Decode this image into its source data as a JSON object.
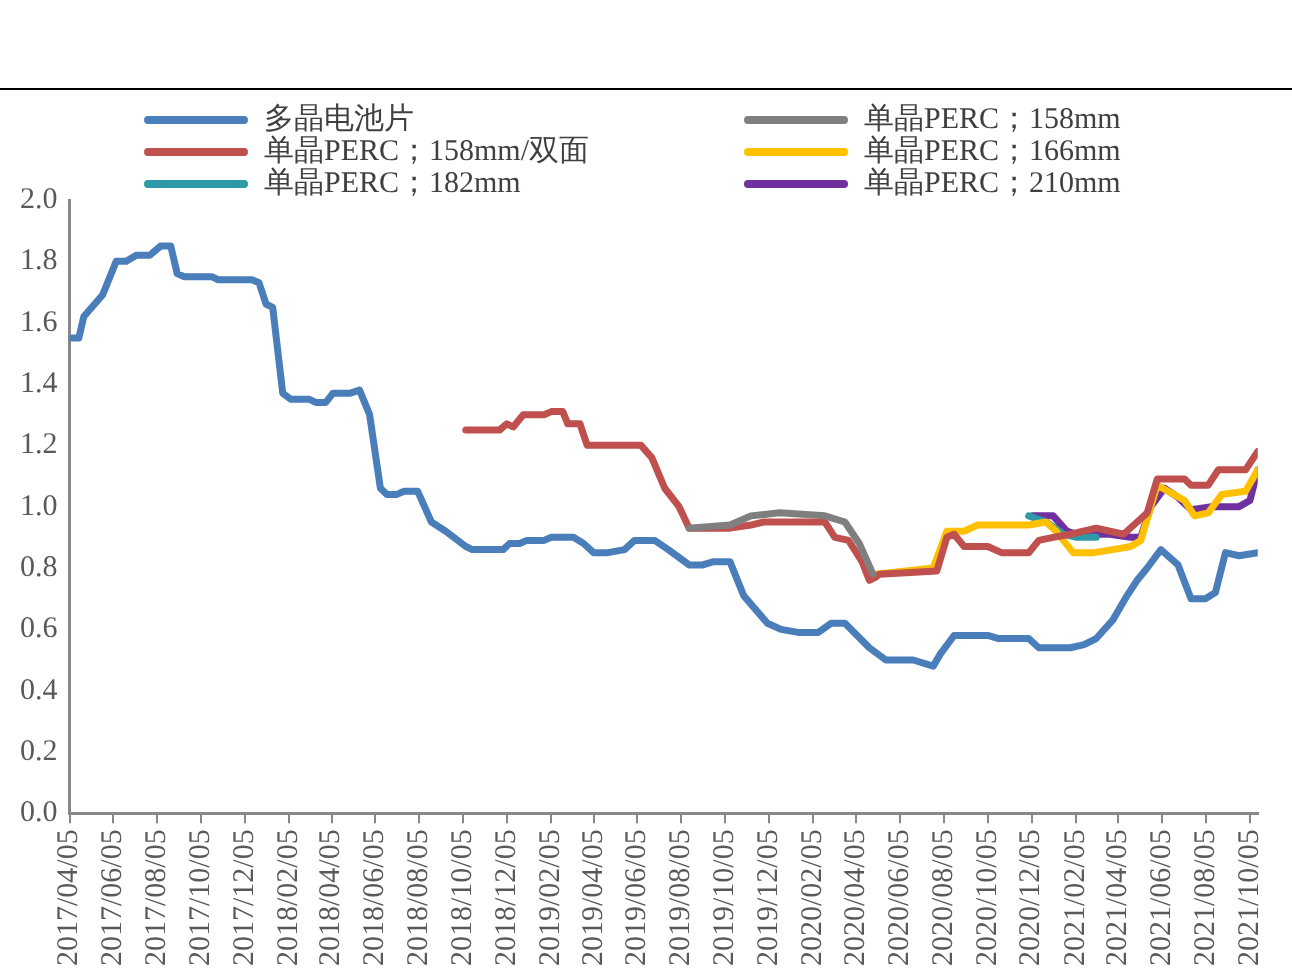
{
  "chart_data": {
    "type": "line",
    "legend": "top",
    "marker": "none",
    "line_style": "solid",
    "grid": false,
    "xlim": [
      "2017-04-05",
      "2021-10-16"
    ],
    "xticks": [
      {
        "value": "2017-04-05",
        "label": "2017/04/05"
      },
      {
        "value": "2017-06-05",
        "label": "2017/06/05"
      },
      {
        "value": "2017-08-05",
        "label": "2017/08/05"
      },
      {
        "value": "2017-10-05",
        "label": "2017/10/05"
      },
      {
        "value": "2017-12-05",
        "label": "2017/12/05"
      },
      {
        "value": "2018-02-05",
        "label": "2018/02/05"
      },
      {
        "value": "2018-04-05",
        "label": "2018/04/05"
      },
      {
        "value": "2018-06-05",
        "label": "2018/06/05"
      },
      {
        "value": "2018-08-05",
        "label": "2018/08/05"
      },
      {
        "value": "2018-10-05",
        "label": "2018/10/05"
      },
      {
        "value": "2018-12-05",
        "label": "2018/12/05"
      },
      {
        "value": "2019-02-05",
        "label": "2019/02/05"
      },
      {
        "value": "2019-04-05",
        "label": "2019/04/05"
      },
      {
        "value": "2019-06-05",
        "label": "2019/06/05"
      },
      {
        "value": "2019-08-05",
        "label": "2019/08/05"
      },
      {
        "value": "2019-10-05",
        "label": "2019/10/05"
      },
      {
        "value": "2019-12-05",
        "label": "2019/12/05"
      },
      {
        "value": "2020-02-05",
        "label": "2020/02/05"
      },
      {
        "value": "2020-04-05",
        "label": "2020/04/05"
      },
      {
        "value": "2020-06-05",
        "label": "2020/06/05"
      },
      {
        "value": "2020-08-05",
        "label": "2020/08/05"
      },
      {
        "value": "2020-10-05",
        "label": "2020/10/05"
      },
      {
        "value": "2020-12-05",
        "label": "2020/12/05"
      },
      {
        "value": "2021-02-05",
        "label": "2021/02/05"
      },
      {
        "value": "2021-04-05",
        "label": "2021/04/05"
      },
      {
        "value": "2021-06-05",
        "label": "2021/06/05"
      },
      {
        "value": "2021-08-05",
        "label": "2021/08/05"
      },
      {
        "value": "2021-10-05",
        "label": "2021/10/05"
      }
    ],
    "ylim": [
      0,
      2
    ],
    "yticks": [
      {
        "value": 0,
        "label": "0.0"
      },
      {
        "value": 0.2,
        "label": "0.2"
      },
      {
        "value": 0.4,
        "label": "0.4"
      },
      {
        "value": 0.6,
        "label": "0.6"
      },
      {
        "value": 0.8,
        "label": "0.8"
      },
      {
        "value": 1,
        "label": "1.0"
      },
      {
        "value": 1.2,
        "label": "1.2"
      },
      {
        "value": 1.4,
        "label": "1.4"
      },
      {
        "value": 1.6,
        "label": "1.6"
      },
      {
        "value": 1.8,
        "label": "1.8"
      },
      {
        "value": 2,
        "label": "2.0"
      }
    ],
    "series": [
      {
        "name": "多晶电池片",
        "color": "#4a7ebb",
        "x": [
          "2017-04-05",
          "2017-04-18",
          "2017-04-25",
          "2017-05-21",
          "2017-06-09",
          "2017-06-23",
          "2017-07-07",
          "2017-07-26",
          "2017-08-10",
          "2017-08-24",
          "2017-09-02",
          "2017-09-12",
          "2017-10-20",
          "2017-10-29",
          "2017-12-15",
          "2017-12-25",
          "2018-01-04",
          "2018-01-13",
          "2018-01-27",
          "2018-02-07",
          "2018-03-05",
          "2018-03-14",
          "2018-03-28",
          "2018-04-07",
          "2018-05-01",
          "2018-05-14",
          "2018-05-28",
          "2018-06-12",
          "2018-06-21",
          "2018-07-05",
          "2018-07-15",
          "2018-08-03",
          "2018-08-22",
          "2018-09-11",
          "2018-10-09",
          "2018-10-18",
          "2018-11-30",
          "2018-12-09",
          "2018-12-23",
          "2019-01-02",
          "2019-01-26",
          "2019-02-05",
          "2019-03-08",
          "2019-03-22",
          "2019-04-05",
          "2019-04-25",
          "2019-05-18",
          "2019-06-01",
          "2019-06-29",
          "2019-07-18",
          "2019-08-16",
          "2019-09-04",
          "2019-09-18",
          "2019-10-12",
          "2019-10-31",
          "2019-12-03",
          "2019-12-22",
          "2020-01-15",
          "2020-02-12",
          "2020-03-01",
          "2020-03-20",
          "2020-04-23",
          "2020-05-16",
          "2020-06-23",
          "2020-07-21",
          "2020-07-31",
          "2020-08-19",
          "2020-10-05",
          "2020-10-20",
          "2020-12-01",
          "2020-12-15",
          "2021-01-28",
          "2021-02-16",
          "2021-03-05",
          "2021-03-28",
          "2021-04-17",
          "2021-05-01",
          "2021-05-15",
          "2021-06-03",
          "2021-06-27",
          "2021-07-15",
          "2021-08-04",
          "2021-08-18",
          "2021-09-01",
          "2021-09-20",
          "2021-10-16"
        ],
        "values": [
          1.55,
          1.55,
          1.62,
          1.69,
          1.8,
          1.8,
          1.82,
          1.82,
          1.85,
          1.85,
          1.76,
          1.75,
          1.75,
          1.74,
          1.74,
          1.73,
          1.66,
          1.65,
          1.37,
          1.35,
          1.35,
          1.34,
          1.34,
          1.37,
          1.37,
          1.38,
          1.3,
          1.06,
          1.04,
          1.04,
          1.05,
          1.05,
          0.95,
          0.92,
          0.87,
          0.86,
          0.86,
          0.88,
          0.88,
          0.89,
          0.89,
          0.9,
          0.9,
          0.88,
          0.85,
          0.85,
          0.86,
          0.89,
          0.89,
          0.86,
          0.81,
          0.81,
          0.82,
          0.82,
          0.71,
          0.62,
          0.6,
          0.59,
          0.59,
          0.62,
          0.62,
          0.54,
          0.5,
          0.5,
          0.48,
          0.52,
          0.58,
          0.58,
          0.57,
          0.57,
          0.54,
          0.54,
          0.55,
          0.57,
          0.63,
          0.71,
          0.76,
          0.8,
          0.86,
          0.81,
          0.7,
          0.7,
          0.72,
          0.85,
          0.84,
          0.85
        ]
      },
      {
        "name": "单晶PERC；158mm",
        "color": "#7f7f7f",
        "x": [
          "2019-08-16",
          "2019-10-12",
          "2019-11-10",
          "2019-12-20",
          "2020-02-21",
          "2020-03-20",
          "2020-04-09",
          "2020-04-28"
        ],
        "values": [
          0.93,
          0.94,
          0.97,
          0.98,
          0.97,
          0.95,
          0.88,
          0.78
        ]
      },
      {
        "name": "单晶PERC；158mm/双面",
        "color": "#c0504d",
        "x": [
          "2018-10-09",
          "2018-11-25",
          "2018-12-05",
          "2018-12-14",
          "2018-12-28",
          "2019-01-26",
          "2019-02-05",
          "2019-02-21",
          "2019-02-28",
          "2019-03-17",
          "2019-03-27",
          "2019-06-10",
          "2019-06-25",
          "2019-07-13",
          "2019-08-02",
          "2019-08-16",
          "2019-10-12",
          "2019-11-10",
          "2019-11-28",
          "2020-02-21",
          "2020-03-06",
          "2020-03-25",
          "2020-04-13",
          "2020-04-23",
          "2020-05-02",
          "2020-05-07",
          "2020-07-26",
          "2020-08-09",
          "2020-08-19",
          "2020-09-02",
          "2020-10-05",
          "2020-10-24",
          "2020-12-01",
          "2020-12-15",
          "2021-01-04",
          "2021-01-28",
          "2021-03-05",
          "2021-04-12",
          "2021-05-01",
          "2021-05-15",
          "2021-05-29",
          "2021-07-06",
          "2021-07-15",
          "2021-08-08",
          "2021-08-22",
          "2021-09-29",
          "2021-10-16"
        ],
        "values": [
          1.25,
          1.25,
          1.27,
          1.26,
          1.3,
          1.3,
          1.31,
          1.31,
          1.27,
          1.27,
          1.2,
          1.2,
          1.16,
          1.06,
          1,
          0.93,
          0.93,
          0.94,
          0.95,
          0.95,
          0.9,
          0.89,
          0.82,
          0.76,
          0.77,
          0.78,
          0.79,
          0.9,
          0.91,
          0.87,
          0.87,
          0.85,
          0.85,
          0.89,
          0.9,
          0.91,
          0.93,
          0.91,
          0.95,
          0.98,
          1.09,
          1.09,
          1.07,
          1.07,
          1.12,
          1.12,
          1.18
        ]
      },
      {
        "name": "单晶PERC；166mm",
        "color": "#ffc000",
        "x": [
          "2020-05-02",
          "2020-07-21",
          "2020-08-09",
          "2020-09-02",
          "2020-09-21",
          "2020-12-01",
          "2020-12-25",
          "2021-01-08",
          "2021-02-01",
          "2021-03-02",
          "2021-03-28",
          "2021-04-22",
          "2021-05-06",
          "2021-05-29",
          "2021-07-06",
          "2021-07-20",
          "2021-08-08",
          "2021-08-27",
          "2021-09-29",
          "2021-10-16"
        ],
        "values": [
          0.78,
          0.8,
          0.92,
          0.92,
          0.94,
          0.94,
          0.95,
          0.92,
          0.85,
          0.85,
          0.86,
          0.87,
          0.89,
          1.07,
          1.02,
          0.97,
          0.98,
          1.04,
          1.05,
          1.12
        ]
      },
      {
        "name": "单晶PERC；182mm",
        "color": "#2e9aa8",
        "x": [
          "2020-12-01",
          "2020-12-25",
          "2021-01-19",
          "2021-02-06",
          "2021-03-05"
        ],
        "values": [
          0.97,
          0.95,
          0.91,
          0.9,
          0.9
        ]
      },
      {
        "name": "单晶PERC；210mm",
        "color": "#7030a0",
        "x": [
          "2020-12-06",
          "2021-01-04",
          "2021-01-23",
          "2021-02-06",
          "2021-03-24",
          "2021-04-22",
          "2021-05-06",
          "2021-05-20",
          "2021-06-08",
          "2021-06-27",
          "2021-07-15",
          "2021-08-13",
          "2021-09-20",
          "2021-10-05",
          "2021-10-16"
        ],
        "values": [
          0.97,
          0.97,
          0.92,
          0.91,
          0.91,
          0.9,
          0.9,
          1,
          1.06,
          1.03,
          0.99,
          1,
          1,
          1.02,
          1.12
        ]
      }
    ]
  }
}
